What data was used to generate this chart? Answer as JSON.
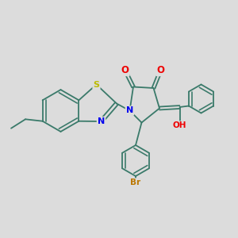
{
  "background_color": "#dcdcdc",
  "bond_color": "#3a7a6a",
  "atom_colors": {
    "N": "#0000ee",
    "O": "#ee0000",
    "S": "#bbbb00",
    "Br": "#bb7700",
    "H": "#000000",
    "C": "#3a7a6a"
  },
  "figsize": [
    3.0,
    3.0
  ],
  "dpi": 100,
  "lw": 1.3,
  "off": 0.065
}
